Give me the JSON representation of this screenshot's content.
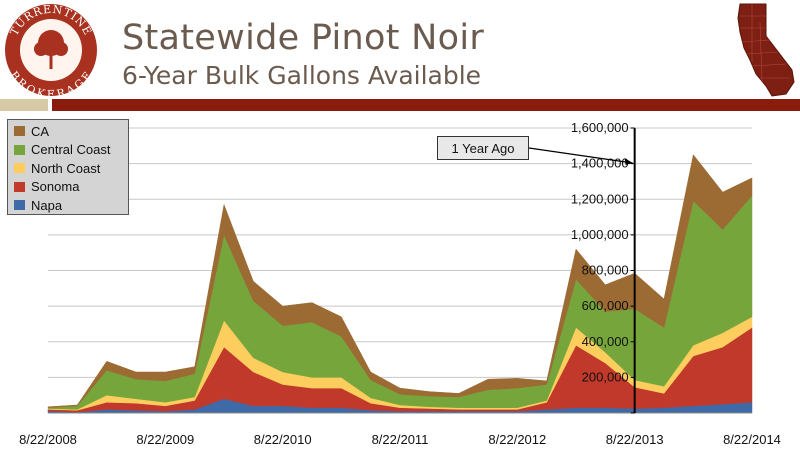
{
  "header": {
    "logo_top_text": "TURRENTINE",
    "logo_bottom_text": "BROKERAGE",
    "title": "Statewide Pinot Noir",
    "subtitle": "6-Year Bulk Gallons Available"
  },
  "colors": {
    "logo_red": "#a8321f",
    "band_light": "#d8c9a6",
    "band_dark": "#8a1c0e",
    "california_map": "#7d1f12",
    "title_text": "#6b5a4e"
  },
  "annotation": {
    "label": "1 Year Ago",
    "date": "8/22/2013"
  },
  "chart_data": {
    "type": "area",
    "stacked": true,
    "x": [
      "8/22/2008",
      "11/22/2008",
      "2/22/2009",
      "5/22/2009",
      "8/22/2009",
      "11/22/2009",
      "2/22/2010",
      "5/22/2010",
      "8/22/2010",
      "11/22/2010",
      "2/22/2011",
      "5/22/2011",
      "8/22/2011",
      "11/22/2011",
      "2/22/2012",
      "5/22/2012",
      "8/22/2012",
      "11/22/2012",
      "2/22/2013",
      "5/22/2013",
      "8/22/2013",
      "11/22/2013",
      "2/22/2014",
      "5/22/2014",
      "8/22/2014"
    ],
    "x_tick_labels": [
      "8/22/2008",
      "8/22/2009",
      "8/22/2010",
      "8/22/2011",
      "8/22/2012",
      "8/22/2013",
      "8/22/2014"
    ],
    "y_tick_labels": [
      "0",
      "200,000",
      "400,000",
      "600,000",
      "800,000",
      "1,000,000",
      "1,200,000",
      "1,400,000",
      "1,600,000"
    ],
    "ylim": [
      0,
      1600000
    ],
    "y_axis_position": "at 8/22/2013",
    "grid": true,
    "legend": "top-left",
    "series": [
      {
        "name": "Napa",
        "color": "#3f6aa8",
        "values": [
          10000,
          5000,
          20000,
          15000,
          10000,
          20000,
          80000,
          40000,
          40000,
          30000,
          30000,
          15000,
          10000,
          10000,
          10000,
          10000,
          10000,
          20000,
          30000,
          30000,
          25000,
          30000,
          40000,
          50000,
          60000
        ]
      },
      {
        "name": "Sonoma",
        "color": "#c0392b",
        "values": [
          10000,
          10000,
          40000,
          40000,
          30000,
          50000,
          290000,
          190000,
          120000,
          110000,
          110000,
          40000,
          20000,
          15000,
          10000,
          10000,
          10000,
          40000,
          350000,
          250000,
          120000,
          80000,
          280000,
          320000,
          420000
        ]
      },
      {
        "name": "North Coast",
        "color": "#fdcd5e",
        "values": [
          5000,
          5000,
          40000,
          25000,
          20000,
          20000,
          150000,
          80000,
          70000,
          60000,
          60000,
          30000,
          15000,
          10000,
          10000,
          10000,
          10000,
          10000,
          100000,
          60000,
          40000,
          40000,
          60000,
          80000,
          60000
        ]
      },
      {
        "name": "Central Coast",
        "color": "#76a63b",
        "values": [
          5000,
          20000,
          140000,
          110000,
          120000,
          130000,
          480000,
          320000,
          260000,
          310000,
          230000,
          100000,
          60000,
          60000,
          60000,
          100000,
          110000,
          90000,
          270000,
          230000,
          400000,
          330000,
          810000,
          580000,
          680000
        ]
      },
      {
        "name": "CA",
        "color": "#9c6b33",
        "values": [
          5000,
          5000,
          50000,
          40000,
          50000,
          40000,
          170000,
          110000,
          110000,
          110000,
          110000,
          45000,
          35000,
          25000,
          20000,
          60000,
          55000,
          20000,
          170000,
          150000,
          200000,
          160000,
          260000,
          210000,
          100000
        ]
      }
    ]
  }
}
